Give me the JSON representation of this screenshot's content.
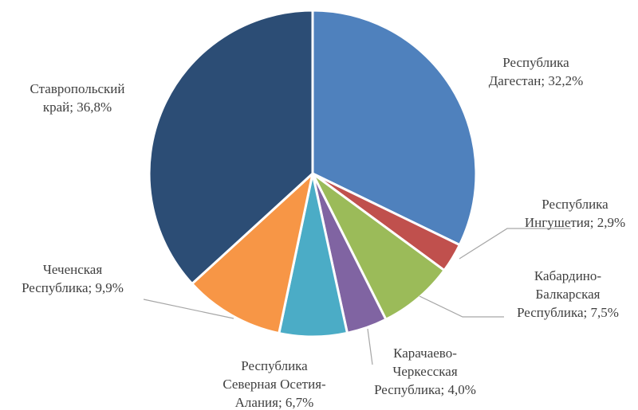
{
  "chart_data": {
    "type": "pie",
    "title": "",
    "slices": [
      {
        "name": "Республика Дагестан",
        "value": 32.2,
        "color": "#4f81bd",
        "label_lines": [
          "Республика",
          "Дагестан; 32,2%"
        ]
      },
      {
        "name": "Республика Ингушетия",
        "value": 2.9,
        "color": "#c0504d",
        "label_lines": [
          "Республика",
          "Ингушетия; 2,9%"
        ]
      },
      {
        "name": "Кабардино-Балкарская Республика",
        "value": 7.5,
        "color": "#9bbb59",
        "label_lines": [
          "Кабардино-",
          "Балкарская",
          "Республика; 7,5%"
        ]
      },
      {
        "name": "Карачаево-Черкесская Республика",
        "value": 4.0,
        "color": "#8064a2",
        "label_lines": [
          "Карачаево-",
          "Черкесская",
          "Республика; 4,0%"
        ]
      },
      {
        "name": "Республика Северная Осетия-Алания",
        "value": 6.7,
        "color": "#4bacc6",
        "label_lines": [
          "Республика",
          "Северная Осетия-",
          "Алания; 6,7%"
        ]
      },
      {
        "name": "Чеченская Республика",
        "value": 9.9,
        "color": "#f79646",
        "label_lines": [
          "Чеченская",
          "Республика; 9,9%"
        ]
      },
      {
        "name": "Ставропольский край",
        "value": 36.8,
        "color": "#2c4d75",
        "label_lines": [
          "Ставропольский",
          "край; 36,8%"
        ]
      }
    ]
  }
}
